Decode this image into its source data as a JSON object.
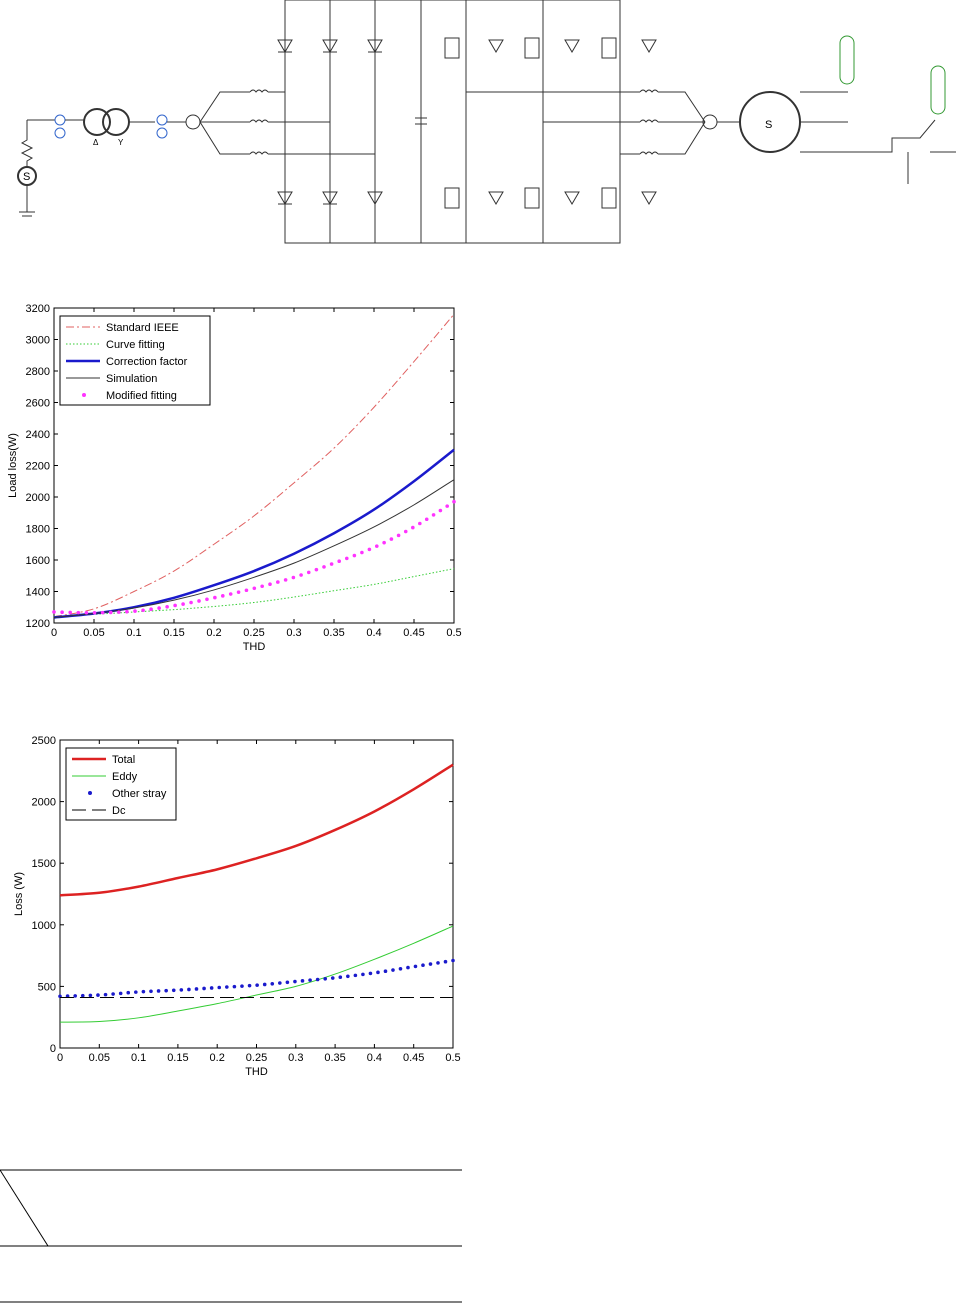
{
  "circuit": {
    "delta_label": "Δ",
    "wye_label": "Y",
    "source_label": "S",
    "motor_label": "S"
  },
  "chart_data": [
    {
      "type": "line",
      "xlabel": "THD",
      "ylabel": "Load loss(W)",
      "xlim": [
        0,
        0.5
      ],
      "ylim": [
        1200,
        3200
      ],
      "xticks": [
        0,
        0.05,
        0.1,
        0.15,
        0.2,
        0.25,
        0.3,
        0.35,
        0.4,
        0.45,
        0.5
      ],
      "xtick_labels": [
        "0",
        "0.05",
        "0.1",
        "0.15",
        "0.2",
        "0.25",
        "0.3",
        "0.35",
        "0.4",
        "0.45",
        "0.5"
      ],
      "yticks": [
        1200,
        1400,
        1600,
        1800,
        2000,
        2200,
        2400,
        2600,
        2800,
        3000,
        3200
      ],
      "legend_position": "top-left",
      "grid": false,
      "x": [
        0,
        0.05,
        0.1,
        0.15,
        0.2,
        0.25,
        0.3,
        0.35,
        0.4,
        0.45,
        0.5
      ],
      "series": [
        {
          "name": "Standard IEEE",
          "style": "dashdot",
          "color": "#e06060",
          "values": [
            1240,
            1290,
            1400,
            1530,
            1700,
            1880,
            2090,
            2310,
            2570,
            2860,
            3160
          ]
        },
        {
          "name": "Curve fitting",
          "style": "dotted",
          "color": "#33cc33",
          "values": [
            1240,
            1255,
            1270,
            1285,
            1305,
            1330,
            1365,
            1405,
            1445,
            1495,
            1545
          ]
        },
        {
          "name": "Correction factor",
          "style": "solid-thick",
          "color": "#1a1acc",
          "values": [
            1235,
            1260,
            1300,
            1360,
            1440,
            1530,
            1640,
            1770,
            1920,
            2100,
            2300
          ]
        },
        {
          "name": "Simulation",
          "style": "solid",
          "color": "#333333",
          "values": [
            1235,
            1260,
            1295,
            1345,
            1410,
            1490,
            1580,
            1690,
            1810,
            1950,
            2110
          ]
        },
        {
          "name": "Modified fitting",
          "style": "dots",
          "color": "#ff33ff",
          "values": [
            1270,
            1265,
            1275,
            1310,
            1360,
            1420,
            1490,
            1580,
            1680,
            1810,
            1970
          ]
        }
      ]
    },
    {
      "type": "line",
      "xlabel": "THD",
      "ylabel": "Loss (W)",
      "xlim": [
        0,
        0.5
      ],
      "ylim": [
        0,
        2500
      ],
      "xticks": [
        0,
        0.05,
        0.1,
        0.15,
        0.2,
        0.25,
        0.3,
        0.35,
        0.4,
        0.45,
        0.5
      ],
      "xtick_labels": [
        "0",
        "0.05",
        "0.1",
        "0.15",
        "0.2",
        "0.25",
        "0.3",
        "0.35",
        "0.4",
        "0.45",
        "0.5"
      ],
      "yticks": [
        0,
        500,
        1000,
        1500,
        2000,
        2500
      ],
      "legend_position": "top-left",
      "grid": false,
      "x": [
        0,
        0.05,
        0.1,
        0.15,
        0.2,
        0.25,
        0.3,
        0.35,
        0.4,
        0.45,
        0.5
      ],
      "series": [
        {
          "name": "Total",
          "style": "solid-thick",
          "color": "#dd2222",
          "values": [
            1240,
            1260,
            1310,
            1380,
            1450,
            1540,
            1640,
            1770,
            1920,
            2100,
            2300
          ]
        },
        {
          "name": "Eddy",
          "style": "solid",
          "color": "#33cc33",
          "values": [
            210,
            215,
            245,
            300,
            360,
            430,
            500,
            600,
            720,
            850,
            990
          ]
        },
        {
          "name": "Other stray",
          "style": "dots",
          "color": "#1a1acc",
          "values": [
            420,
            430,
            455,
            470,
            490,
            510,
            540,
            570,
            610,
            660,
            710
          ]
        },
        {
          "name": "Dc",
          "style": "dashed",
          "color": "#000000",
          "values": [
            410,
            410,
            410,
            410,
            410,
            410,
            410,
            410,
            410,
            410,
            410
          ]
        }
      ]
    }
  ]
}
